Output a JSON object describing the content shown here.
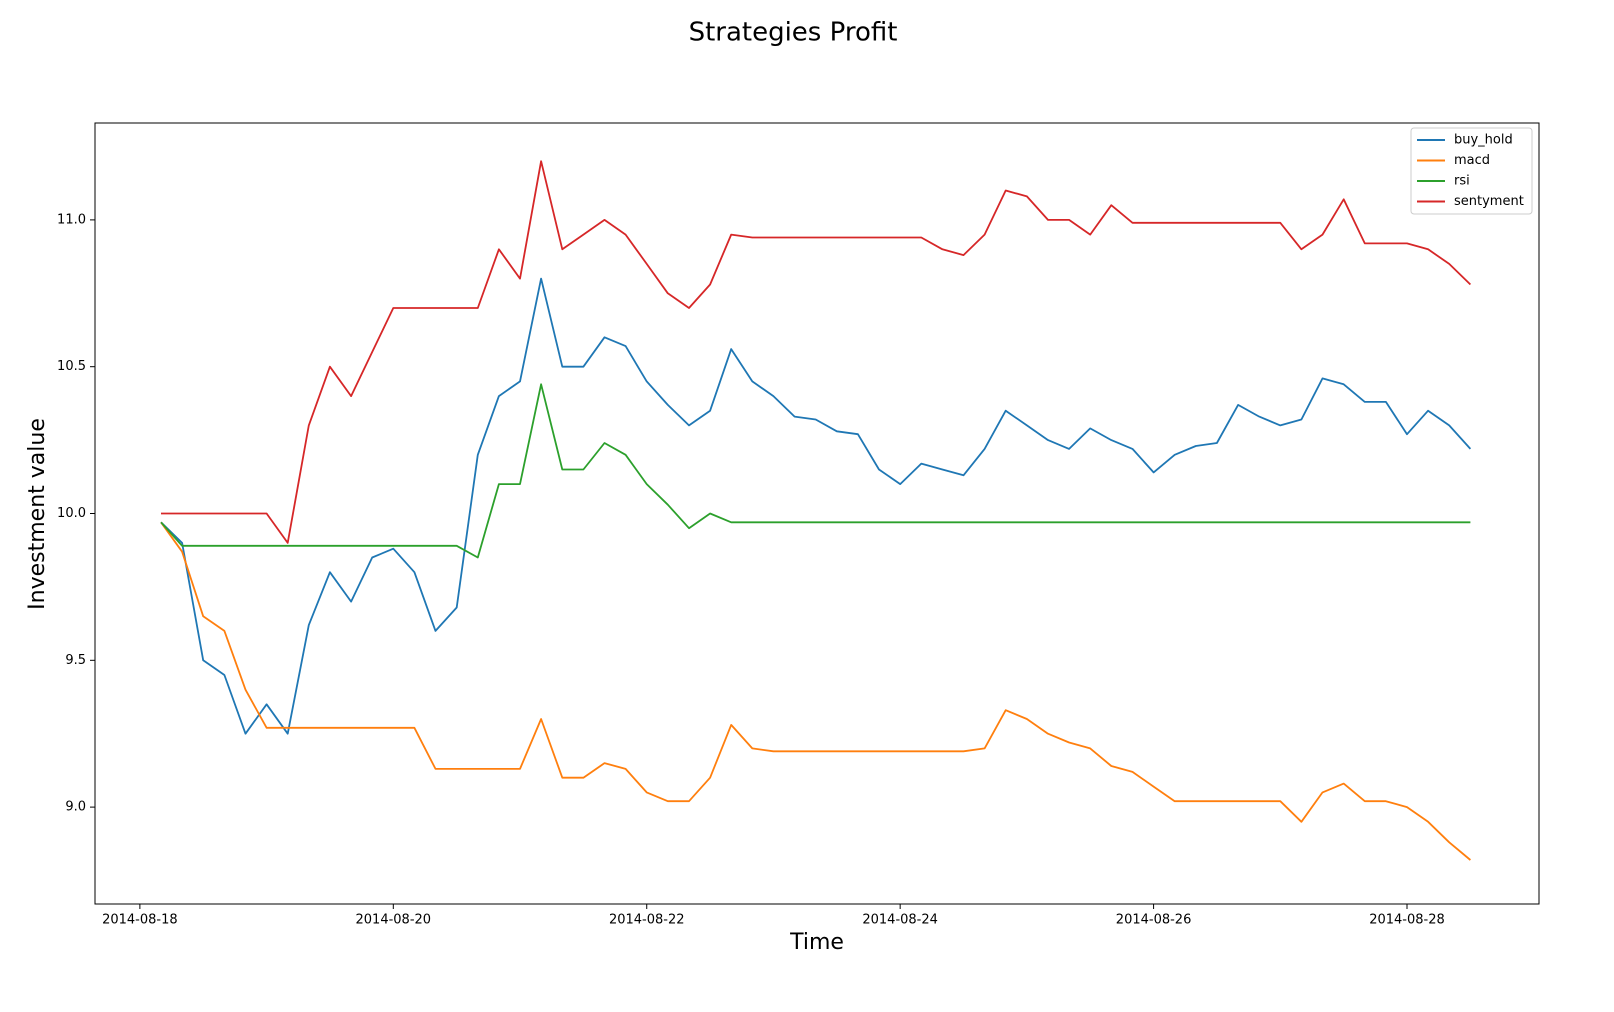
{
  "chart_data": {
    "type": "line",
    "title": "Strategies Profit",
    "xlabel": "Time",
    "ylabel": "Investment value",
    "x": [
      "2014-08-18 04:00",
      "2014-08-18 08:00",
      "2014-08-18 12:00",
      "2014-08-18 16:00",
      "2014-08-18 20:00",
      "2014-08-19 00:00",
      "2014-08-19 04:00",
      "2014-08-19 08:00",
      "2014-08-19 12:00",
      "2014-08-19 16:00",
      "2014-08-19 20:00",
      "2014-08-20 00:00",
      "2014-08-20 04:00",
      "2014-08-20 08:00",
      "2014-08-20 12:00",
      "2014-08-20 16:00",
      "2014-08-20 20:00",
      "2014-08-21 00:00",
      "2014-08-21 04:00",
      "2014-08-21 08:00",
      "2014-08-21 12:00",
      "2014-08-21 16:00",
      "2014-08-21 20:00",
      "2014-08-22 00:00",
      "2014-08-22 04:00",
      "2014-08-22 08:00",
      "2014-08-22 12:00",
      "2014-08-22 16:00",
      "2014-08-22 20:00",
      "2014-08-23 00:00",
      "2014-08-23 04:00",
      "2014-08-23 08:00",
      "2014-08-23 12:00",
      "2014-08-23 16:00",
      "2014-08-23 20:00",
      "2014-08-24 00:00",
      "2014-08-24 04:00",
      "2014-08-24 08:00",
      "2014-08-24 12:00",
      "2014-08-24 16:00",
      "2014-08-24 20:00",
      "2014-08-25 00:00",
      "2014-08-25 04:00",
      "2014-08-25 08:00",
      "2014-08-25 12:00",
      "2014-08-25 16:00",
      "2014-08-25 20:00",
      "2014-08-26 00:00",
      "2014-08-26 04:00",
      "2014-08-26 08:00",
      "2014-08-26 12:00",
      "2014-08-26 16:00",
      "2014-08-26 20:00",
      "2014-08-27 00:00",
      "2014-08-27 04:00",
      "2014-08-27 08:00",
      "2014-08-27 12:00",
      "2014-08-27 16:00",
      "2014-08-27 20:00",
      "2014-08-28 00:00",
      "2014-08-28 04:00",
      "2014-08-28 08:00",
      "2014-08-28 12:00"
    ],
    "series": [
      {
        "name": "buy_hold",
        "color": "#1f77b4",
        "values": [
          9.97,
          9.9,
          9.5,
          9.45,
          9.25,
          9.35,
          9.25,
          9.62,
          9.8,
          9.7,
          9.85,
          9.88,
          9.8,
          9.6,
          9.68,
          10.2,
          10.4,
          10.45,
          10.8,
          10.5,
          10.5,
          10.6,
          10.57,
          10.45,
          10.37,
          10.3,
          10.35,
          10.56,
          10.45,
          10.4,
          10.33,
          10.32,
          10.28,
          10.27,
          10.15,
          10.1,
          10.17,
          10.15,
          10.13,
          10.22,
          10.35,
          10.3,
          10.25,
          10.22,
          10.29,
          10.25,
          10.22,
          10.14,
          10.2,
          10.23,
          10.24,
          10.37,
          10.33,
          10.3,
          10.32,
          10.46,
          10.44,
          10.38,
          10.38,
          10.27,
          10.35,
          10.3,
          10.22
        ]
      },
      {
        "name": "macd",
        "color": "#ff7f0e",
        "values": [
          9.97,
          9.87,
          9.65,
          9.6,
          9.4,
          9.27,
          9.27,
          9.27,
          9.27,
          9.27,
          9.27,
          9.27,
          9.27,
          9.13,
          9.13,
          9.13,
          9.13,
          9.13,
          9.3,
          9.1,
          9.1,
          9.15,
          9.13,
          9.05,
          9.02,
          9.02,
          9.1,
          9.28,
          9.2,
          9.19,
          9.19,
          9.19,
          9.19,
          9.19,
          9.19,
          9.19,
          9.19,
          9.19,
          9.19,
          9.2,
          9.33,
          9.3,
          9.25,
          9.22,
          9.2,
          9.14,
          9.12,
          9.07,
          9.02,
          9.02,
          9.02,
          9.02,
          9.02,
          9.02,
          8.95,
          9.05,
          9.08,
          9.02,
          9.02,
          9.0,
          8.95,
          8.88,
          8.82
        ]
      },
      {
        "name": "rsi",
        "color": "#2ca02c",
        "values": [
          9.97,
          9.89,
          9.89,
          9.89,
          9.89,
          9.89,
          9.89,
          9.89,
          9.89,
          9.89,
          9.89,
          9.89,
          9.89,
          9.89,
          9.89,
          9.85,
          10.1,
          10.1,
          10.44,
          10.15,
          10.15,
          10.24,
          10.2,
          10.1,
          10.03,
          9.95,
          10.0,
          9.97,
          9.97,
          9.97,
          9.97,
          9.97,
          9.97,
          9.97,
          9.97,
          9.97,
          9.97,
          9.97,
          9.97,
          9.97,
          9.97,
          9.97,
          9.97,
          9.97,
          9.97,
          9.97,
          9.97,
          9.97,
          9.97,
          9.97,
          9.97,
          9.97,
          9.97,
          9.97,
          9.97,
          9.97,
          9.97,
          9.97,
          9.97,
          9.97,
          9.97,
          9.97,
          9.97
        ]
      },
      {
        "name": "sentyment",
        "color": "#d62728",
        "values": [
          10.0,
          10.0,
          10.0,
          10.0,
          10.0,
          10.0,
          9.9,
          10.3,
          10.5,
          10.4,
          10.55,
          10.7,
          10.7,
          10.7,
          10.7,
          10.7,
          10.9,
          10.8,
          11.2,
          10.9,
          10.95,
          11.0,
          10.95,
          10.85,
          10.75,
          10.7,
          10.78,
          10.95,
          10.94,
          10.94,
          10.94,
          10.94,
          10.94,
          10.94,
          10.94,
          10.94,
          10.94,
          10.9,
          10.88,
          10.95,
          11.1,
          11.08,
          11.0,
          11.0,
          10.95,
          11.05,
          10.99,
          10.99,
          10.99,
          10.99,
          10.99,
          10.99,
          10.99,
          10.99,
          10.9,
          10.95,
          11.07,
          10.92,
          10.92,
          10.92,
          10.9,
          10.85,
          10.78
        ]
      }
    ],
    "xlim": [
      "2014-08-17 15:30",
      "2014-08-29 01:00"
    ],
    "xticks": [
      "2014-08-18",
      "2014-08-20",
      "2014-08-22",
      "2014-08-24",
      "2014-08-26",
      "2014-08-28"
    ],
    "ylim": [
      8.67,
      11.33
    ],
    "yticks": [
      {
        "value": 9,
        "label": "9.0"
      },
      {
        "value": 9.5,
        "label": "9.5"
      },
      {
        "value": 10,
        "label": "10.0"
      },
      {
        "value": 10.5,
        "label": "10.5"
      },
      {
        "value": 11,
        "label": "11.0"
      }
    ],
    "grid": false,
    "legend": "upper right"
  }
}
